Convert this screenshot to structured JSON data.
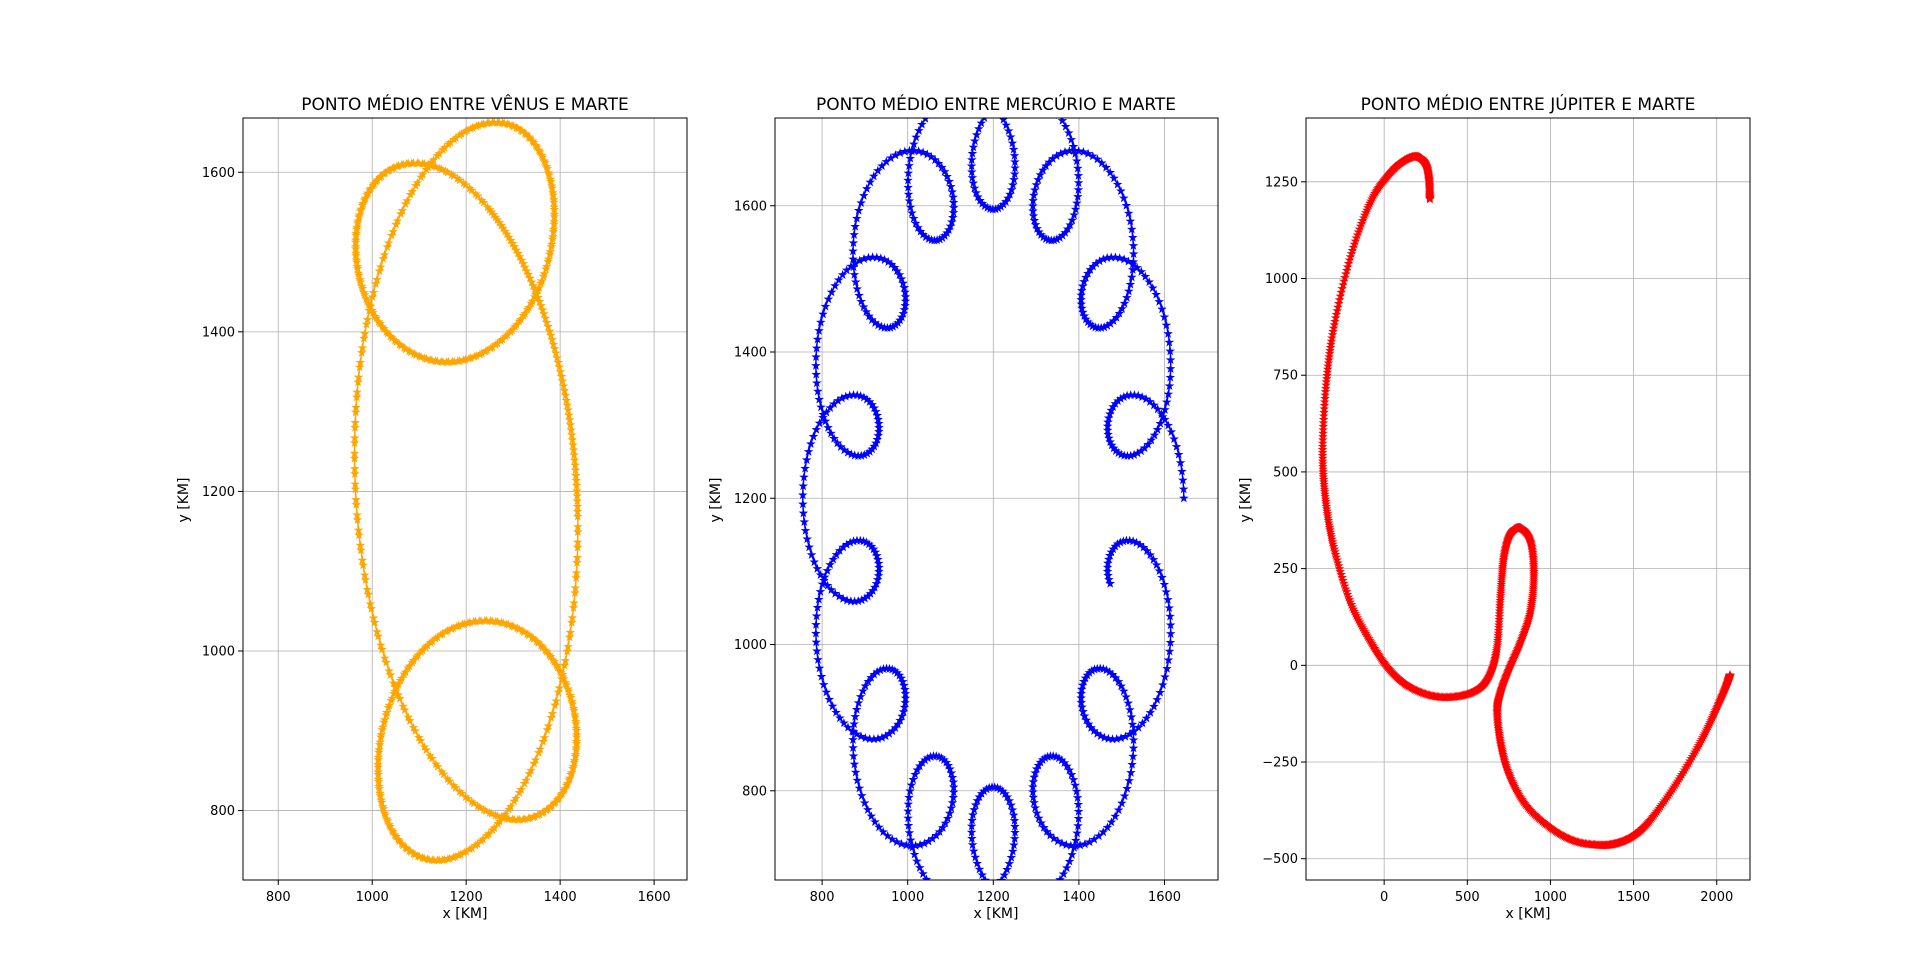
{
  "chart_data": [
    {
      "type": "line",
      "title": "PONTO MÉDIO ENTRE VÊNUS E MARTE",
      "xlabel": "x [KM]",
      "ylabel": "y [KM]",
      "xlim": [
        725,
        1670
      ],
      "ylim": [
        713,
        1668
      ],
      "xticks": [
        800,
        1000,
        1200,
        1400,
        1600
      ],
      "yticks": [
        800,
        1000,
        1200,
        1400,
        1600
      ],
      "grid": true,
      "marker": "star",
      "color": "#ffa500",
      "series": [
        {
          "curve": "epicycle",
          "center": [
            1200,
            1200
          ],
          "terms": [
            [
              200,
              2,
              0
            ],
            [
              -185,
              -2,
              0.15
            ],
            [
              220,
              6,
              0.04
            ]
          ],
          "points": 1400,
          "t_range": [
            0,
            6.5
          ]
        }
      ]
    },
    {
      "type": "line",
      "title": "PONTO MÉDIO ENTRE MERCÚRIO E MARTE",
      "xlabel": "x [KM]",
      "ylabel": "y [KM]",
      "xlim": [
        690,
        1725
      ],
      "ylim": [
        678,
        1720
      ],
      "xticks": [
        800,
        1000,
        1200,
        1400,
        1600
      ],
      "yticks": [
        800,
        1000,
        1200,
        1400,
        1600
      ],
      "grid": true,
      "marker": "star",
      "color": "#0000ff",
      "series": [
        {
          "curve": "epicycle",
          "center": [
            1200,
            1200
          ],
          "terms": [
            [
              420,
              1,
              0
            ],
            [
              -60,
              -1,
              0
            ],
            [
              85,
              15,
              0
            ]
          ],
          "points": 2600,
          "t_range": [
            0,
            6.1
          ]
        }
      ]
    },
    {
      "type": "line",
      "title": "PONTO MÉDIO ENTRE JÚPITER E MARTE",
      "xlabel": "x [KM]",
      "ylabel": "y [KM]",
      "xlim": [
        -470,
        2200
      ],
      "ylim": [
        -555,
        1415
      ],
      "xticks": [
        0,
        500,
        1000,
        1500,
        2000
      ],
      "yticks": [
        -500,
        -250,
        0,
        250,
        500,
        750,
        1000,
        1250
      ],
      "grid": true,
      "marker": "star",
      "color": "#ff0000",
      "series": [
        {
          "curve": "polyline",
          "x": [
            275,
            270,
            250,
            200,
            120,
            30,
            -80,
            -200,
            -300,
            -350,
            -370,
            -350,
            -300,
            -200,
            -80,
            30,
            150,
            300,
            450,
            570,
            640,
            680,
            700,
            720,
            760,
            820,
            880,
            900,
            880,
            820,
            750,
            700,
            680,
            700,
            750,
            850,
            1000,
            1150,
            1300,
            1400,
            1500,
            1600,
            1750,
            1900,
            2000,
            2060,
            2080
          ],
          "y": [
            1205,
            1255,
            1295,
            1315,
            1305,
            1270,
            1200,
            1060,
            880,
            720,
            550,
            420,
            300,
            160,
            60,
            -10,
            -55,
            -80,
            -80,
            -60,
            -20,
            50,
            180,
            280,
            340,
            355,
            320,
            240,
            140,
            60,
            -10,
            -70,
            -120,
            -200,
            -280,
            -360,
            -420,
            -455,
            -465,
            -460,
            -440,
            -400,
            -310,
            -200,
            -110,
            -50,
            -25
          ],
          "points": 1800
        }
      ]
    }
  ]
}
